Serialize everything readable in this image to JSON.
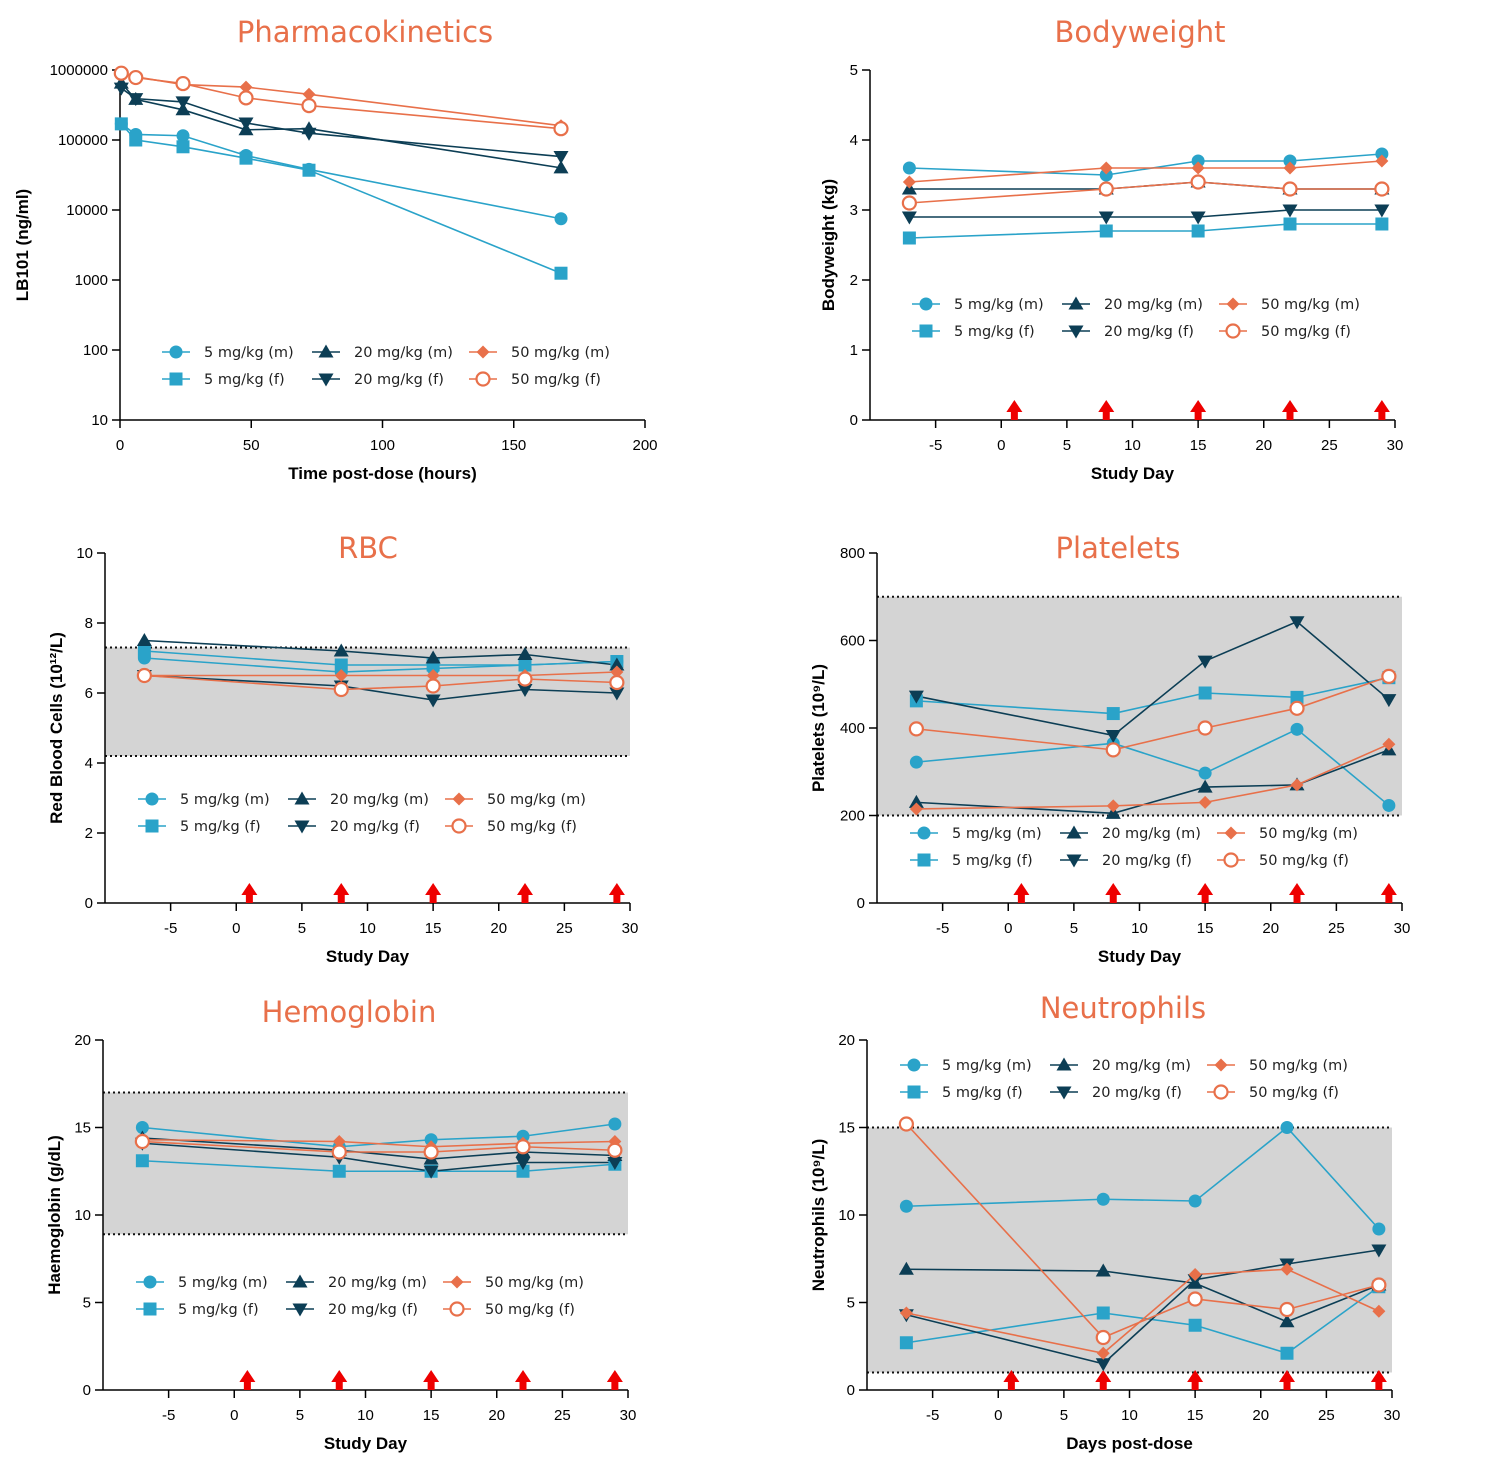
{
  "colors": {
    "series_5mg": "#2AA3C9",
    "series_20mg": "#0C3E55",
    "series_50mg": "#E8704A",
    "title": "#E8704A",
    "dose_arrow": "#EE0000",
    "normal_band": "#D4D4D4"
  },
  "legend_labels": [
    "5 mg/kg (m)",
    "5 mg/kg (f)",
    "20 mg/kg (m)",
    "20 mg/kg (f)",
    "50 mg/kg (m)",
    "50 mg/kg (f)"
  ],
  "chart_data": [
    {
      "id": "pk",
      "type": "line",
      "title": "Pharmacokinetics",
      "xlabel": "Time post-dose (hours)",
      "ylabel": "LB101 (ng/ml)",
      "yscale": "log",
      "xlim": [
        0,
        200
      ],
      "ylim": [
        10,
        1000000
      ],
      "xticks": [
        0,
        50,
        100,
        150,
        200
      ],
      "yticks": [
        10,
        100,
        1000,
        10000,
        100000,
        1000000
      ],
      "ytick_labels": [
        "10",
        "100",
        "1000",
        "10000",
        "100000",
        "1000000"
      ],
      "x": [
        0.5,
        6,
        24,
        48,
        72,
        168
      ],
      "series": [
        {
          "name": "5 mg/kg (m)",
          "values": [
            170000,
            120000,
            115000,
            60000,
            38000,
            7500
          ]
        },
        {
          "name": "5 mg/kg (f)",
          "values": [
            170000,
            100000,
            80000,
            55000,
            37000,
            1250
          ]
        },
        {
          "name": "20 mg/kg (m)",
          "values": [
            650000,
            380000,
            270000,
            140000,
            145000,
            40000
          ]
        },
        {
          "name": "20 mg/kg (f)",
          "values": [
            550000,
            390000,
            350000,
            175000,
            125000,
            58000
          ]
        },
        {
          "name": "50 mg/kg (m)",
          "values": [
            900000,
            800000,
            620000,
            570000,
            450000,
            160000
          ]
        },
        {
          "name": "50 mg/kg (f)",
          "values": [
            900000,
            780000,
            640000,
            400000,
            310000,
            145000
          ]
        }
      ],
      "legend": "bottom",
      "dose_days": []
    },
    {
      "id": "bw",
      "type": "line",
      "title": "Bodyweight",
      "xlabel": "Study Day",
      "ylabel": "Bodyweight (kg)",
      "yscale": "linear",
      "xlim": [
        -10,
        30
      ],
      "ylim": [
        0,
        5
      ],
      "xticks": [
        -5,
        0,
        5,
        10,
        15,
        20,
        25,
        30
      ],
      "yticks": [
        0,
        1,
        2,
        3,
        4,
        5
      ],
      "x": [
        -7,
        8,
        15,
        22,
        29
      ],
      "series": [
        {
          "name": "5 mg/kg (m)",
          "values": [
            3.6,
            3.5,
            3.7,
            3.7,
            3.8
          ]
        },
        {
          "name": "5 mg/kg (f)",
          "values": [
            2.6,
            2.7,
            2.7,
            2.8,
            2.8
          ]
        },
        {
          "name": "20 mg/kg (m)",
          "values": [
            3.3,
            3.3,
            3.4,
            3.3,
            3.3
          ]
        },
        {
          "name": "20 mg/kg (f)",
          "values": [
            2.9,
            2.9,
            2.9,
            3.0,
            3.0
          ]
        },
        {
          "name": "50 mg/kg (m)",
          "values": [
            3.4,
            3.6,
            3.6,
            3.6,
            3.7
          ]
        },
        {
          "name": "50 mg/kg (f)",
          "values": [
            3.1,
            3.3,
            3.4,
            3.3,
            3.3
          ]
        }
      ],
      "legend": "middle",
      "dose_days": [
        1,
        8,
        15,
        22,
        29
      ]
    },
    {
      "id": "rbc",
      "type": "line",
      "title": "RBC",
      "xlabel": "Study Day",
      "ylabel": "Red Blood Cells (10¹²/L)",
      "yscale": "linear",
      "xlim": [
        -10,
        30
      ],
      "ylim": [
        0,
        10
      ],
      "xticks": [
        -5,
        0,
        5,
        10,
        15,
        20,
        25,
        30
      ],
      "yticks": [
        0,
        2,
        4,
        6,
        8,
        10
      ],
      "reference_range": [
        4.2,
        7.3
      ],
      "x": [
        -7,
        8,
        15,
        22,
        29
      ],
      "series": [
        {
          "name": "5 mg/kg (m)",
          "values": [
            7.0,
            6.6,
            6.7,
            6.8,
            6.9
          ]
        },
        {
          "name": "5 mg/kg (f)",
          "values": [
            7.2,
            6.8,
            6.8,
            6.8,
            6.9
          ]
        },
        {
          "name": "20 mg/kg (m)",
          "values": [
            7.5,
            7.2,
            7.0,
            7.1,
            6.8
          ]
        },
        {
          "name": "20 mg/kg (f)",
          "values": [
            6.5,
            6.2,
            5.8,
            6.1,
            6.0
          ]
        },
        {
          "name": "50 mg/kg (m)",
          "values": [
            6.5,
            6.5,
            6.5,
            6.5,
            6.6
          ]
        },
        {
          "name": "50 mg/kg (f)",
          "values": [
            6.5,
            6.1,
            6.2,
            6.4,
            6.3
          ]
        }
      ],
      "legend": "bottom",
      "dose_days": [
        1,
        8,
        15,
        22,
        29
      ]
    },
    {
      "id": "plt",
      "type": "line",
      "title": "Platelets",
      "xlabel": "Study Day",
      "ylabel": "Platelets (10⁹/L)",
      "yscale": "linear",
      "xlim": [
        -10,
        30
      ],
      "ylim": [
        0,
        800
      ],
      "xticks": [
        -5,
        0,
        5,
        10,
        15,
        20,
        25,
        30
      ],
      "yticks": [
        0,
        200,
        400,
        600,
        800
      ],
      "reference_range": [
        200,
        700
      ],
      "x": [
        -7,
        8,
        15,
        22,
        29
      ],
      "series": [
        {
          "name": "5 mg/kg (m)",
          "values": [
            322,
            365,
            297,
            397,
            223
          ]
        },
        {
          "name": "5 mg/kg (f)",
          "values": [
            462,
            433,
            480,
            470,
            515
          ]
        },
        {
          "name": "20 mg/kg (m)",
          "values": [
            230,
            205,
            265,
            270,
            350
          ]
        },
        {
          "name": "20 mg/kg (f)",
          "values": [
            473,
            383,
            553,
            643,
            465
          ]
        },
        {
          "name": "50 mg/kg (m)",
          "values": [
            215,
            222,
            230,
            270,
            363
          ]
        },
        {
          "name": "50 mg/kg (f)",
          "values": [
            398,
            350,
            400,
            445,
            518
          ]
        }
      ],
      "legend": "bottom",
      "dose_days": [
        1,
        8,
        15,
        22,
        29
      ]
    },
    {
      "id": "hgb",
      "type": "line",
      "title": "Hemoglobin",
      "xlabel": "Study Day",
      "ylabel": "Haemoglobin (g/dL)",
      "yscale": "linear",
      "xlim": [
        -10,
        30
      ],
      "ylim": [
        0,
        20
      ],
      "xticks": [
        -5,
        0,
        5,
        10,
        15,
        20,
        25,
        30
      ],
      "yticks": [
        0,
        5,
        10,
        15,
        20
      ],
      "reference_range": [
        8.9,
        17.0
      ],
      "x": [
        -7,
        8,
        15,
        22,
        29
      ],
      "series": [
        {
          "name": "5 mg/kg (m)",
          "values": [
            15.0,
            13.9,
            14.3,
            14.5,
            15.2
          ]
        },
        {
          "name": "5 mg/kg (f)",
          "values": [
            13.1,
            12.5,
            12.5,
            12.5,
            12.9
          ]
        },
        {
          "name": "20 mg/kg (m)",
          "values": [
            14.4,
            13.7,
            13.2,
            13.6,
            13.4
          ]
        },
        {
          "name": "20 mg/kg (f)",
          "values": [
            14.1,
            13.3,
            12.5,
            13.0,
            13.0
          ]
        },
        {
          "name": "50 mg/kg (m)",
          "values": [
            14.3,
            14.2,
            13.9,
            14.1,
            14.2
          ]
        },
        {
          "name": "50 mg/kg (f)",
          "values": [
            14.2,
            13.6,
            13.6,
            13.9,
            13.7
          ]
        }
      ],
      "legend": "bottom",
      "dose_days": [
        1,
        8,
        15,
        22,
        29
      ]
    },
    {
      "id": "neu",
      "type": "line",
      "title": "Neutrophils",
      "xlabel": "Days post-dose",
      "ylabel": "Neutrophils (10⁹/L)",
      "yscale": "linear",
      "xlim": [
        -10,
        30
      ],
      "ylim": [
        0,
        20
      ],
      "xticks": [
        -5,
        0,
        5,
        10,
        15,
        20,
        25,
        30
      ],
      "yticks": [
        0,
        5,
        10,
        15,
        20
      ],
      "reference_range": [
        1.0,
        15.0
      ],
      "x": [
        -7,
        8,
        15,
        22,
        29
      ],
      "series": [
        {
          "name": "5 mg/kg (m)",
          "values": [
            10.5,
            10.9,
            10.8,
            15.0,
            9.2
          ]
        },
        {
          "name": "5 mg/kg (f)",
          "values": [
            2.7,
            4.4,
            3.7,
            2.1,
            5.9
          ]
        },
        {
          "name": "20 mg/kg (m)",
          "values": [
            6.9,
            6.8,
            6.1,
            3.9,
            6.0
          ]
        },
        {
          "name": "20 mg/kg (f)",
          "values": [
            4.3,
            1.5,
            6.3,
            7.2,
            8.0
          ]
        },
        {
          "name": "50 mg/kg (m)",
          "values": [
            4.4,
            2.1,
            6.6,
            6.9,
            4.5
          ]
        },
        {
          "name": "50 mg/kg (f)",
          "values": [
            15.2,
            3.0,
            5.2,
            4.6,
            6.0
          ]
        }
      ],
      "legend": "top",
      "dose_days": [
        1,
        8,
        15,
        22,
        29
      ]
    }
  ]
}
